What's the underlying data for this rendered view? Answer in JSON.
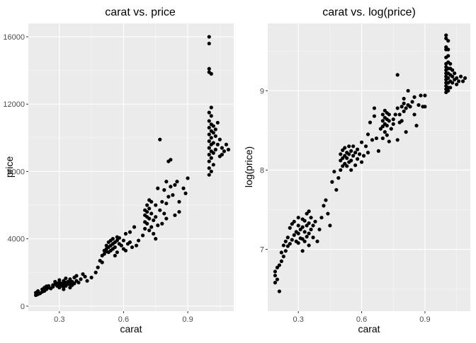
{
  "chart_data": [
    {
      "type": "scatter",
      "title": "carat vs. price",
      "xlabel": "carat",
      "ylabel": "price",
      "xlim": [
        0.155,
        1.115
      ],
      "ylim": [
        -300,
        16800
      ],
      "xticks": [
        0.3,
        0.6,
        0.9
      ],
      "xtick_labels": [
        "0.3",
        "0.6",
        "0.9"
      ],
      "yticks": [
        0,
        4000,
        8000,
        12000,
        16000
      ],
      "ytick_labels": [
        "0",
        "4000",
        "8000",
        "12000",
        "16000"
      ],
      "grid": true,
      "point_color": "#000000",
      "points": [
        [
          0.19,
          650
        ],
        [
          0.19,
          800
        ],
        [
          0.2,
          700
        ],
        [
          0.2,
          900
        ],
        [
          0.21,
          760
        ],
        [
          0.22,
          850
        ],
        [
          0.22,
          1000
        ],
        [
          0.23,
          900
        ],
        [
          0.23,
          1100
        ],
        [
          0.24,
          1000
        ],
        [
          0.24,
          1180
        ],
        [
          0.25,
          1100
        ],
        [
          0.25,
          1200
        ],
        [
          0.26,
          1050
        ],
        [
          0.27,
          1150
        ],
        [
          0.27,
          1250
        ],
        [
          0.28,
          1300
        ],
        [
          0.28,
          1450
        ],
        [
          0.29,
          1200
        ],
        [
          0.29,
          1350
        ],
        [
          0.3,
          1100
        ],
        [
          0.3,
          1250
        ],
        [
          0.3,
          1400
        ],
        [
          0.3,
          1550
        ],
        [
          0.31,
          1200
        ],
        [
          0.31,
          1350
        ],
        [
          0.32,
          1000
        ],
        [
          0.32,
          1150
        ],
        [
          0.32,
          1300
        ],
        [
          0.32,
          1500
        ],
        [
          0.33,
          1200
        ],
        [
          0.33,
          1400
        ],
        [
          0.33,
          1650
        ],
        [
          0.34,
          1300
        ],
        [
          0.34,
          1450
        ],
        [
          0.35,
          1100
        ],
        [
          0.35,
          1300
        ],
        [
          0.35,
          1500
        ],
        [
          0.35,
          1600
        ],
        [
          0.36,
          1250
        ],
        [
          0.36,
          1450
        ],
        [
          0.37,
          1350
        ],
        [
          0.37,
          1700
        ],
        [
          0.38,
          1500
        ],
        [
          0.38,
          1800
        ],
        [
          0.39,
          1400
        ],
        [
          0.4,
          1600
        ],
        [
          0.41,
          1900
        ],
        [
          0.42,
          1750
        ],
        [
          0.43,
          1500
        ],
        [
          0.45,
          1700
        ],
        [
          0.47,
          2000
        ],
        [
          0.48,
          2300
        ],
        [
          0.49,
          2700
        ],
        [
          0.5,
          2600
        ],
        [
          0.5,
          3000
        ],
        [
          0.51,
          3100
        ],
        [
          0.51,
          3300
        ],
        [
          0.52,
          3400
        ],
        [
          0.52,
          3600
        ],
        [
          0.52,
          3250
        ],
        [
          0.53,
          3200
        ],
        [
          0.53,
          3500
        ],
        [
          0.53,
          3800
        ],
        [
          0.54,
          3300
        ],
        [
          0.54,
          3600
        ],
        [
          0.54,
          3900
        ],
        [
          0.55,
          3400
        ],
        [
          0.55,
          3700
        ],
        [
          0.55,
          4000
        ],
        [
          0.56,
          3000
        ],
        [
          0.56,
          3500
        ],
        [
          0.56,
          3800
        ],
        [
          0.57,
          3200
        ],
        [
          0.57,
          3900
        ],
        [
          0.57,
          4100
        ],
        [
          0.58,
          3700
        ],
        [
          0.58,
          4050
        ],
        [
          0.59,
          3600
        ],
        [
          0.6,
          3400
        ],
        [
          0.6,
          3900
        ],
        [
          0.61,
          3300
        ],
        [
          0.61,
          4300
        ],
        [
          0.62,
          3700
        ],
        [
          0.63,
          4400
        ],
        [
          0.63,
          3800
        ],
        [
          0.64,
          3500
        ],
        [
          0.65,
          4700
        ],
        [
          0.66,
          3600
        ],
        [
          0.67,
          3900
        ],
        [
          0.69,
          4200
        ],
        [
          0.7,
          4600
        ],
        [
          0.7,
          5000
        ],
        [
          0.7,
          5400
        ],
        [
          0.7,
          5700
        ],
        [
          0.71,
          4900
        ],
        [
          0.71,
          5300
        ],
        [
          0.71,
          5600
        ],
        [
          0.71,
          6000
        ],
        [
          0.72,
          4500
        ],
        [
          0.72,
          5200
        ],
        [
          0.72,
          5800
        ],
        [
          0.72,
          6300
        ],
        [
          0.73,
          4700
        ],
        [
          0.73,
          5500
        ],
        [
          0.73,
          6200
        ],
        [
          0.74,
          5100
        ],
        [
          0.74,
          4300
        ],
        [
          0.75,
          4000
        ],
        [
          0.75,
          5300
        ],
        [
          0.75,
          6000
        ],
        [
          0.76,
          7000
        ],
        [
          0.76,
          4800
        ],
        [
          0.77,
          9900
        ],
        [
          0.77,
          5700
        ],
        [
          0.78,
          4900
        ],
        [
          0.78,
          6200
        ],
        [
          0.79,
          5500
        ],
        [
          0.79,
          6900
        ],
        [
          0.8,
          5200
        ],
        [
          0.8,
          6100
        ],
        [
          0.8,
          7400
        ],
        [
          0.81,
          8600
        ],
        [
          0.81,
          6500
        ],
        [
          0.82,
          7100
        ],
        [
          0.82,
          8700
        ],
        [
          0.83,
          6600
        ],
        [
          0.84,
          5400
        ],
        [
          0.84,
          7200
        ],
        [
          0.85,
          7400
        ],
        [
          0.86,
          6200
        ],
        [
          0.86,
          5600
        ],
        [
          0.88,
          7000
        ],
        [
          0.89,
          6700
        ],
        [
          0.9,
          7600
        ],
        [
          1.0,
          7800
        ],
        [
          1.0,
          8200
        ],
        [
          1.0,
          8600
        ],
        [
          1.0,
          9000
        ],
        [
          1.0,
          9400
        ],
        [
          1.0,
          9800
        ],
        [
          1.0,
          10200
        ],
        [
          1.0,
          10600
        ],
        [
          1.0,
          11000
        ],
        [
          1.0,
          11500
        ],
        [
          1.0,
          13900
        ],
        [
          1.0,
          14100
        ],
        [
          1.0,
          15600
        ],
        [
          1.0,
          16000
        ],
        [
          1.01,
          8000
        ],
        [
          1.01,
          8800
        ],
        [
          1.01,
          9200
        ],
        [
          1.01,
          9600
        ],
        [
          1.01,
          10000
        ],
        [
          1.01,
          10400
        ],
        [
          1.01,
          10800
        ],
        [
          1.01,
          11300
        ],
        [
          1.01,
          11800
        ],
        [
          1.01,
          13800
        ],
        [
          1.02,
          8400
        ],
        [
          1.02,
          9100
        ],
        [
          1.02,
          9700
        ],
        [
          1.02,
          10300
        ],
        [
          1.02,
          10700
        ],
        [
          1.03,
          9300
        ],
        [
          1.03,
          10100
        ],
        [
          1.03,
          10500
        ],
        [
          1.04,
          9600
        ],
        [
          1.04,
          10900
        ],
        [
          1.05,
          8900
        ],
        [
          1.05,
          9900
        ],
        [
          1.06,
          9400
        ],
        [
          1.06,
          9000
        ],
        [
          1.07,
          9200
        ],
        [
          1.08,
          9600
        ],
        [
          1.09,
          9300
        ]
      ]
    },
    {
      "type": "scatter",
      "title": "carat vs. log(price)",
      "xlabel": "carat",
      "ylabel": "log(price)",
      "xlim": [
        0.155,
        1.115
      ],
      "ylim": [
        6.22,
        9.85
      ],
      "xticks": [
        0.3,
        0.6,
        0.9
      ],
      "xtick_labels": [
        "0.3",
        "0.6",
        "0.9"
      ],
      "yticks": [
        7,
        8,
        9
      ],
      "ytick_labels": [
        "7",
        "8",
        "9"
      ],
      "grid": true,
      "point_color": "#000000",
      "points": [
        [
          0.19,
          6.58
        ],
        [
          0.19,
          6.67
        ],
        [
          0.19,
          6.72
        ],
        [
          0.2,
          6.62
        ],
        [
          0.2,
          6.77
        ],
        [
          0.21,
          6.47
        ],
        [
          0.21,
          6.8
        ],
        [
          0.22,
          6.85
        ],
        [
          0.22,
          6.96
        ],
        [
          0.23,
          6.91
        ],
        [
          0.23,
          7.05
        ],
        [
          0.24,
          6.98
        ],
        [
          0.24,
          7.1
        ],
        [
          0.25,
          7.04
        ],
        [
          0.25,
          7.15
        ],
        [
          0.26,
          7.07
        ],
        [
          0.26,
          7.27
        ],
        [
          0.27,
          7.12
        ],
        [
          0.27,
          7.32
        ],
        [
          0.28,
          7.18
        ],
        [
          0.28,
          7.35
        ],
        [
          0.29,
          7.1
        ],
        [
          0.29,
          7.22
        ],
        [
          0.3,
          7.08
        ],
        [
          0.3,
          7.2
        ],
        [
          0.3,
          7.3
        ],
        [
          0.3,
          7.4
        ],
        [
          0.31,
          7.14
        ],
        [
          0.31,
          7.25
        ],
        [
          0.32,
          6.98
        ],
        [
          0.32,
          7.13
        ],
        [
          0.32,
          7.28
        ],
        [
          0.32,
          7.38
        ],
        [
          0.33,
          7.1
        ],
        [
          0.33,
          7.22
        ],
        [
          0.33,
          7.36
        ],
        [
          0.34,
          7.16
        ],
        [
          0.34,
          7.3
        ],
        [
          0.34,
          7.45
        ],
        [
          0.35,
          7.05
        ],
        [
          0.35,
          7.2
        ],
        [
          0.35,
          7.33
        ],
        [
          0.35,
          7.48
        ],
        [
          0.36,
          7.25
        ],
        [
          0.36,
          7.4
        ],
        [
          0.37,
          7.15
        ],
        [
          0.37,
          7.3
        ],
        [
          0.38,
          7.35
        ],
        [
          0.39,
          7.1
        ],
        [
          0.4,
          7.25
        ],
        [
          0.41,
          7.4
        ],
        [
          0.42,
          7.55
        ],
        [
          0.43,
          7.62
        ],
        [
          0.44,
          7.45
        ],
        [
          0.45,
          7.3
        ],
        [
          0.46,
          7.85
        ],
        [
          0.47,
          7.98
        ],
        [
          0.48,
          7.75
        ],
        [
          0.49,
          7.9
        ],
        [
          0.5,
          8.12
        ],
        [
          0.5,
          8.2
        ],
        [
          0.5,
          8.0
        ],
        [
          0.51,
          8.05
        ],
        [
          0.51,
          8.15
        ],
        [
          0.51,
          8.25
        ],
        [
          0.52,
          8.08
        ],
        [
          0.52,
          8.18
        ],
        [
          0.52,
          8.28
        ],
        [
          0.53,
          8.05
        ],
        [
          0.53,
          8.15
        ],
        [
          0.53,
          8.22
        ],
        [
          0.54,
          8.1
        ],
        [
          0.54,
          8.2
        ],
        [
          0.54,
          8.3
        ],
        [
          0.55,
          8.0
        ],
        [
          0.55,
          8.12
        ],
        [
          0.55,
          8.24
        ],
        [
          0.56,
          8.18
        ],
        [
          0.56,
          8.3
        ],
        [
          0.57,
          8.06
        ],
        [
          0.57,
          8.22
        ],
        [
          0.58,
          8.14
        ],
        [
          0.58,
          8.26
        ],
        [
          0.59,
          8.2
        ],
        [
          0.6,
          8.1
        ],
        [
          0.6,
          8.35
        ],
        [
          0.61,
          8.18
        ],
        [
          0.62,
          8.3
        ],
        [
          0.63,
          8.22
        ],
        [
          0.63,
          8.45
        ],
        [
          0.64,
          8.6
        ],
        [
          0.65,
          8.38
        ],
        [
          0.66,
          8.68
        ],
        [
          0.66,
          8.78
        ],
        [
          0.67,
          8.4
        ],
        [
          0.68,
          8.24
        ],
        [
          0.69,
          8.52
        ],
        [
          0.7,
          8.4
        ],
        [
          0.7,
          8.55
        ],
        [
          0.7,
          8.62
        ],
        [
          0.7,
          8.7
        ],
        [
          0.71,
          8.48
        ],
        [
          0.71,
          8.58
        ],
        [
          0.71,
          8.66
        ],
        [
          0.71,
          8.75
        ],
        [
          0.72,
          8.44
        ],
        [
          0.72,
          8.56
        ],
        [
          0.72,
          8.64
        ],
        [
          0.72,
          8.72
        ],
        [
          0.73,
          8.36
        ],
        [
          0.73,
          8.62
        ],
        [
          0.73,
          8.7
        ],
        [
          0.74,
          8.52
        ],
        [
          0.75,
          8.58
        ],
        [
          0.75,
          8.64
        ],
        [
          0.76,
          8.7
        ],
        [
          0.77,
          8.38
        ],
        [
          0.77,
          8.78
        ],
        [
          0.78,
          8.6
        ],
        [
          0.78,
          8.7
        ],
        [
          0.79,
          8.8
        ],
        [
          0.79,
          8.62
        ],
        [
          0.8,
          8.74
        ],
        [
          0.8,
          8.84
        ],
        [
          0.8,
          8.9
        ],
        [
          0.81,
          8.48
        ],
        [
          0.81,
          8.78
        ],
        [
          0.82,
          9.0
        ],
        [
          0.82,
          8.82
        ],
        [
          0.83,
          8.8
        ],
        [
          0.84,
          8.86
        ],
        [
          0.85,
          8.7
        ],
        [
          0.85,
          8.92
        ],
        [
          0.86,
          8.56
        ],
        [
          0.87,
          8.82
        ],
        [
          0.88,
          8.94
        ],
        [
          0.89,
          8.8
        ],
        [
          0.9,
          8.8
        ],
        [
          0.9,
          8.94
        ],
        [
          0.77,
          9.2
        ],
        [
          1.0,
          8.98
        ],
        [
          1.0,
          9.02
        ],
        [
          1.0,
          9.06
        ],
        [
          1.0,
          9.1
        ],
        [
          1.0,
          9.14
        ],
        [
          1.0,
          9.18
        ],
        [
          1.0,
          9.22
        ],
        [
          1.0,
          9.26
        ],
        [
          1.0,
          9.3
        ],
        [
          1.0,
          9.34
        ],
        [
          1.0,
          9.42
        ],
        [
          1.0,
          9.52
        ],
        [
          1.0,
          9.55
        ],
        [
          1.0,
          9.66
        ],
        [
          1.0,
          9.7
        ],
        [
          1.01,
          9.0
        ],
        [
          1.01,
          9.04
        ],
        [
          1.01,
          9.1
        ],
        [
          1.01,
          9.16
        ],
        [
          1.01,
          9.22
        ],
        [
          1.01,
          9.28
        ],
        [
          1.01,
          9.36
        ],
        [
          1.01,
          9.44
        ],
        [
          1.01,
          9.52
        ],
        [
          1.01,
          9.63
        ],
        [
          1.02,
          9.04
        ],
        [
          1.02,
          9.12
        ],
        [
          1.02,
          9.2
        ],
        [
          1.02,
          9.28
        ],
        [
          1.02,
          9.34
        ],
        [
          1.03,
          9.1
        ],
        [
          1.03,
          9.18
        ],
        [
          1.03,
          9.26
        ],
        [
          1.04,
          9.14
        ],
        [
          1.04,
          9.22
        ],
        [
          1.05,
          9.08
        ],
        [
          1.05,
          9.16
        ],
        [
          1.06,
          9.12
        ],
        [
          1.07,
          9.18
        ],
        [
          1.08,
          9.12
        ],
        [
          1.09,
          9.16
        ]
      ]
    }
  ]
}
